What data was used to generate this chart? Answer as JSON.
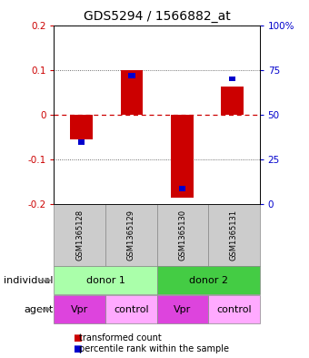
{
  "title": "GDS5294 / 1566882_at",
  "samples": [
    "GSM1365128",
    "GSM1365129",
    "GSM1365130",
    "GSM1365131"
  ],
  "bar_values": [
    -0.055,
    0.1,
    -0.185,
    0.062
  ],
  "percentile_values": [
    -0.062,
    0.088,
    -0.165,
    0.08
  ],
  "ylim": [
    -0.2,
    0.2
  ],
  "yticks_left": [
    -0.2,
    -0.1,
    0.0,
    0.1,
    0.2
  ],
  "yticks_right": [
    0,
    25,
    50,
    75,
    100
  ],
  "ytick_labels_left": [
    "-0.2",
    "-0.1",
    "0",
    "0.1",
    "0.2"
  ],
  "ytick_labels_right": [
    "0",
    "25",
    "50",
    "75",
    "100%"
  ],
  "bar_color": "#cc0000",
  "percentile_color": "#0000cc",
  "bar_width": 0.45,
  "zero_line_color": "#cc0000",
  "dotted_line_color": "#444444",
  "donor1_color": "#aaffaa",
  "donor2_color": "#44cc44",
  "vpr_color": "#dd44dd",
  "control_color": "#ffaaff",
  "gsm_bg_color": "#cccccc",
  "individual_label": "individual",
  "agent_label": "agent",
  "donor1_label": "donor 1",
  "donor2_label": "donor 2",
  "vpr_label": "Vpr",
  "control_label": "control",
  "legend_red_label": "transformed count",
  "legend_blue_label": "percentile rank within the sample",
  "title_fontsize": 10,
  "axis_fontsize": 7.5,
  "tick_fontsize": 7.5,
  "label_fontsize": 8,
  "gsm_fontsize": 6
}
